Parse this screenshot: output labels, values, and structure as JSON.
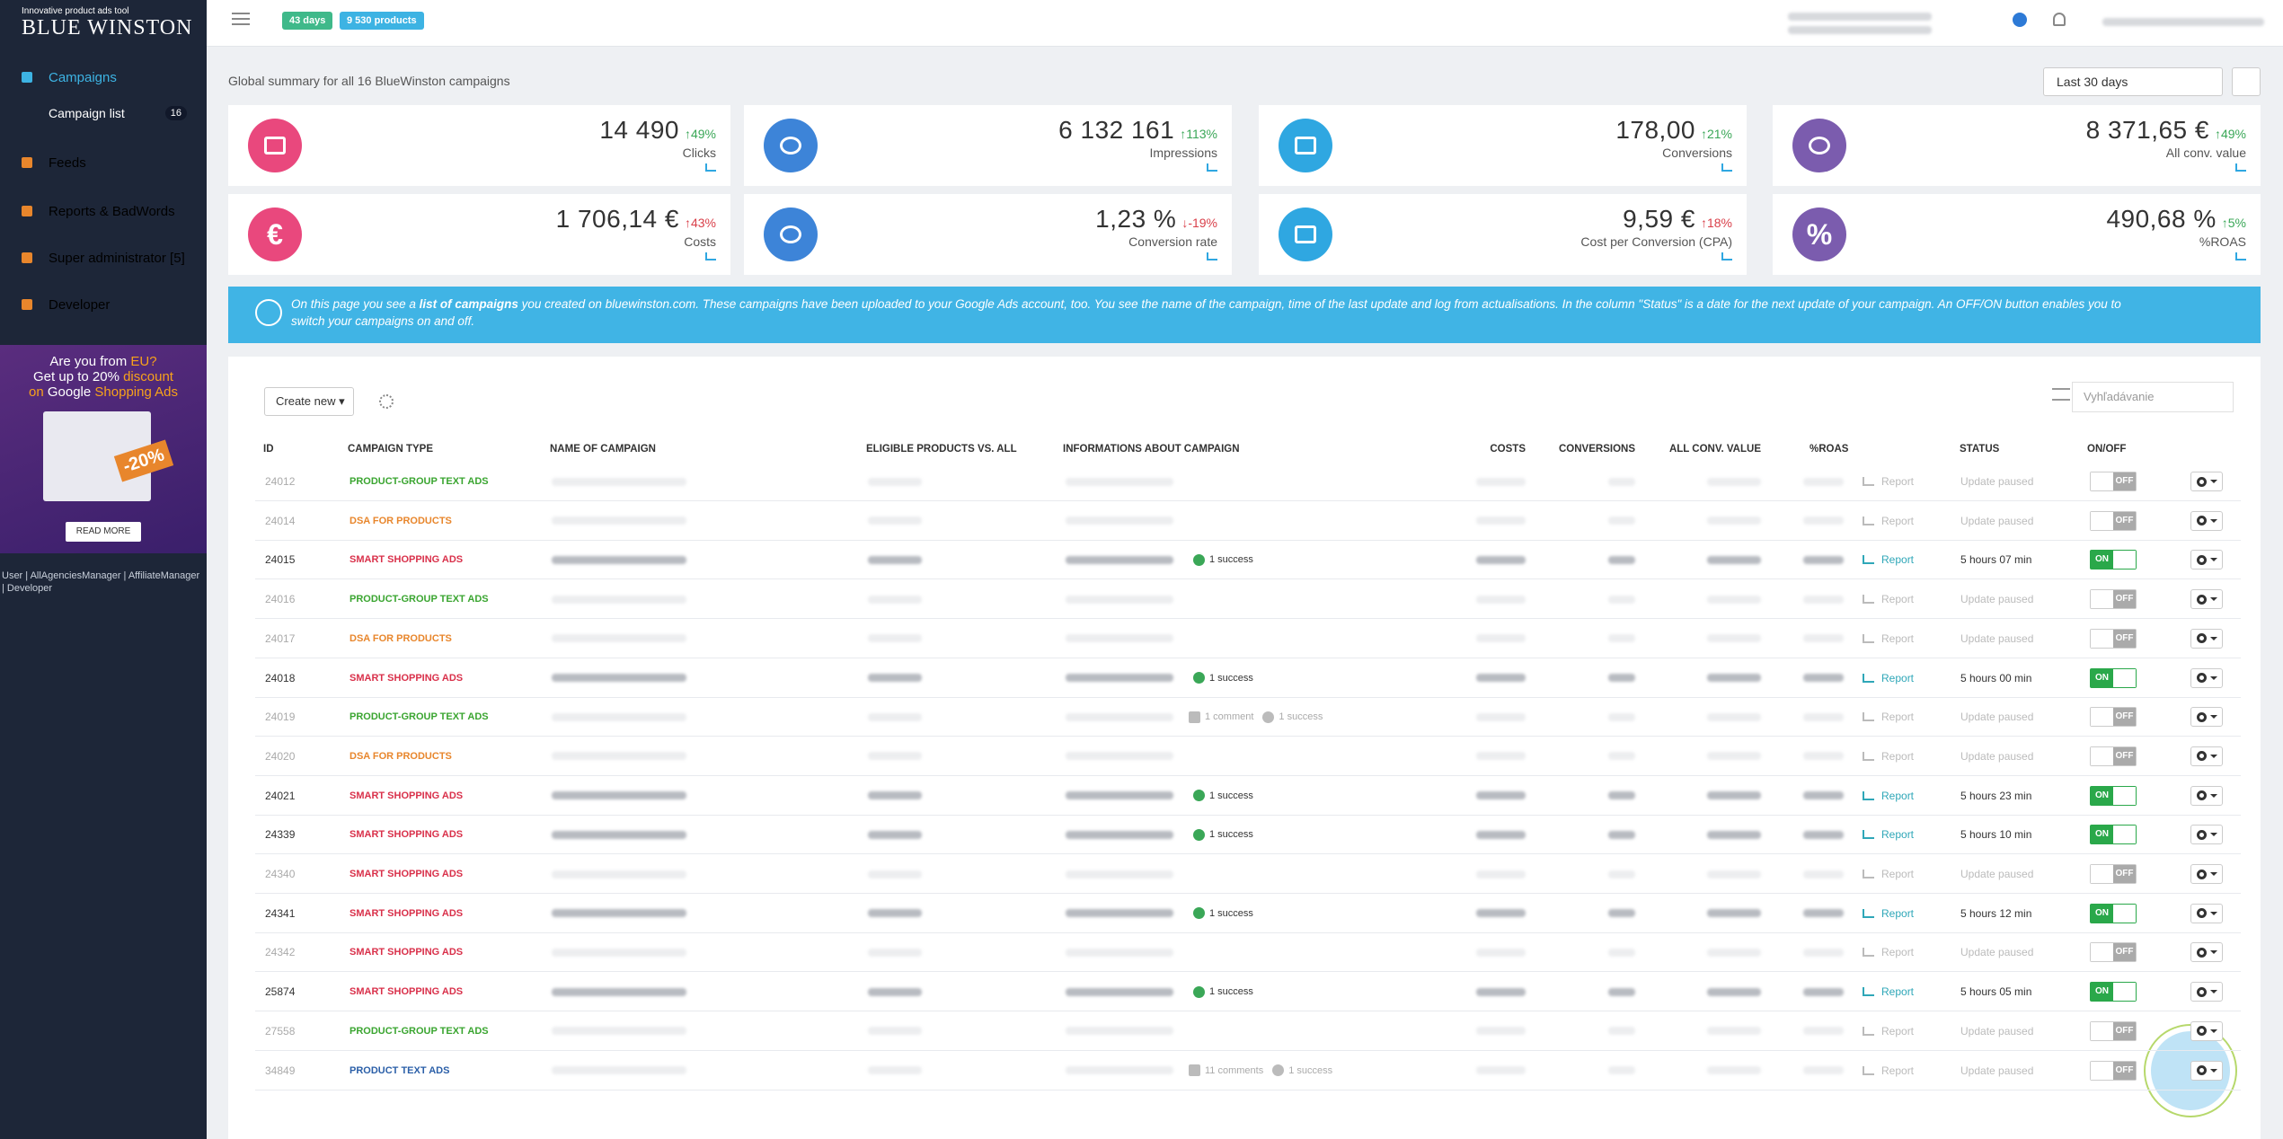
{
  "logo": {
    "tagline": "Innovative product ads tool",
    "name": "BLUE WINSTON"
  },
  "topbar": {
    "badges": [
      {
        "text": "43 days",
        "color": "#3fb98a"
      },
      {
        "text": "9 530 products",
        "color": "#3db3e3"
      }
    ]
  },
  "sidebar": {
    "items": [
      {
        "label": "Campaigns",
        "active": true
      },
      {
        "label": "Campaign list",
        "sub": true,
        "count": "16"
      },
      {
        "label": "Feeds"
      },
      {
        "label": "Reports & BadWords"
      },
      {
        "label": "Super administrator [5]"
      },
      {
        "label": "Developer"
      }
    ],
    "ad": {
      "line1a": "Are you from ",
      "line1b": "EU?",
      "line2a": "Get up to 20% ",
      "line2b": "discount",
      "line3a": "on ",
      "line3b": "Google ",
      "line3c": "Shopping Ads",
      "badge": "-20%",
      "button": "READ MORE"
    },
    "footer": "User | AllAgenciesManager | AffiliateManager | Developer"
  },
  "summary": {
    "title": "Global summary for all 16 BlueWinston campaigns",
    "period": "Last 30 days"
  },
  "cards": [
    {
      "value": "14 490",
      "change": "↑49%",
      "change_color": "#3aa757",
      "label": "Clicks",
      "color": "#e9487d"
    },
    {
      "value": "6 132 161",
      "change": "↑113%",
      "change_color": "#3aa757",
      "label": "Impressions",
      "color": "#3d84d8"
    },
    {
      "value": "178,00",
      "change": "↑21%",
      "change_color": "#3aa757",
      "label": "Conversions",
      "color": "#2fa7e1"
    },
    {
      "value": "8 371,65 €",
      "change": "↑49%",
      "change_color": "#3aa757",
      "label": "All conv. value",
      "color": "#7b5cae"
    },
    {
      "value": "1 706,14 €",
      "change": "↑43%",
      "change_color": "#d9404a",
      "label": "Costs",
      "color": "#e9487d",
      "icon": "€"
    },
    {
      "value": "1,23 %",
      "change": "↓-19%",
      "change_color": "#d9404a",
      "label": "Conversion rate",
      "color": "#3d84d8"
    },
    {
      "value": "9,59 €",
      "change": "↑18%",
      "change_color": "#d9404a",
      "label": "Cost per Conversion (CPA)",
      "color": "#2fa7e1"
    },
    {
      "value": "490,68 %",
      "change": "↑5%",
      "change_color": "#3aa757",
      "label": "%ROAS",
      "color": "#7b5cae",
      "icon": "%"
    }
  ],
  "info_banner": {
    "before": "On this page you see a ",
    "bold": "list of campaigns",
    "after": " you created on bluewinston.com. These campaigns have been uploaded to your Google Ads account, too. You see the name of the campaign, time of the last update and log from actualisations. In the column \"Status\" is a date for the next update of your campaign. An OFF/ON button enables you to switch your campaigns on and off."
  },
  "table": {
    "create_button": "Create new",
    "search_placeholder": "Vyhľadávanie",
    "columns": [
      "ID",
      "CAMPAIGN TYPE",
      "NAME OF CAMPAIGN",
      "ELIGIBLE PRODUCTS VS. ALL",
      "INFORMATIONS ABOUT CAMPAIGN",
      "COSTS",
      "CONVERSIONS",
      "ALL CONV. VALUE",
      "%ROAS",
      "STATUS",
      "ON/OFF"
    ],
    "rows": [
      {
        "id": "24012",
        "type": "PRODUCT-GROUP TEXT ADS",
        "color": "#3aa530",
        "on": false,
        "info": [],
        "report": "Report",
        "status": "Update paused",
        "toggle": "OFF"
      },
      {
        "id": "24014",
        "type": "DSA FOR PRODUCTS",
        "color": "#e8862c",
        "on": false,
        "info": [],
        "report": "Report",
        "status": "Update paused",
        "toggle": "OFF"
      },
      {
        "id": "24015",
        "type": "SMART SHOPPING ADS",
        "color": "#d9304a",
        "on": true,
        "info": [
          "1 success"
        ],
        "report": "Report",
        "status": "5 hours 07 min",
        "toggle": "ON"
      },
      {
        "id": "24016",
        "type": "PRODUCT-GROUP TEXT ADS",
        "color": "#3aa530",
        "on": false,
        "info": [],
        "report": "Report",
        "status": "Update paused",
        "toggle": "OFF"
      },
      {
        "id": "24017",
        "type": "DSA FOR PRODUCTS",
        "color": "#e8862c",
        "on": false,
        "info": [],
        "report": "Report",
        "status": "Update paused",
        "toggle": "OFF"
      },
      {
        "id": "24018",
        "type": "SMART SHOPPING ADS",
        "color": "#d9304a",
        "on": true,
        "info": [
          "1 success"
        ],
        "report": "Report",
        "status": "5 hours 00 min",
        "toggle": "ON"
      },
      {
        "id": "24019",
        "type": "PRODUCT-GROUP TEXT ADS",
        "color": "#3aa530",
        "on": false,
        "info": [
          "1 comment",
          "1 success"
        ],
        "report": "Report",
        "status": "Update paused",
        "toggle": "OFF"
      },
      {
        "id": "24020",
        "type": "DSA FOR PRODUCTS",
        "color": "#e8862c",
        "on": false,
        "info": [],
        "report": "Report",
        "status": "Update paused",
        "toggle": "OFF"
      },
      {
        "id": "24021",
        "type": "SMART SHOPPING ADS",
        "color": "#d9304a",
        "on": true,
        "info": [
          "1 success"
        ],
        "report": "Report",
        "status": "5 hours 23 min",
        "toggle": "ON"
      },
      {
        "id": "24339",
        "type": "SMART SHOPPING ADS",
        "color": "#d9304a",
        "on": true,
        "info": [
          "1 success"
        ],
        "report": "Report",
        "status": "5 hours 10 min",
        "toggle": "ON"
      },
      {
        "id": "24340",
        "type": "SMART SHOPPING ADS",
        "color": "#d9304a",
        "on": false,
        "info": [],
        "report": "Report",
        "status": "Update paused",
        "toggle": "OFF"
      },
      {
        "id": "24341",
        "type": "SMART SHOPPING ADS",
        "color": "#d9304a",
        "on": true,
        "info": [
          "1 success"
        ],
        "report": "Report",
        "status": "5 hours 12 min",
        "toggle": "ON"
      },
      {
        "id": "24342",
        "type": "SMART SHOPPING ADS",
        "color": "#d9304a",
        "on": false,
        "info": [],
        "report": "Report",
        "status": "Update paused",
        "toggle": "OFF"
      },
      {
        "id": "25874",
        "type": "SMART SHOPPING ADS",
        "color": "#d9304a",
        "on": true,
        "info": [
          "1 success"
        ],
        "report": "Report",
        "status": "5 hours 05 min",
        "toggle": "ON"
      },
      {
        "id": "27558",
        "type": "PRODUCT-GROUP TEXT ADS",
        "color": "#3aa530",
        "on": false,
        "info": [],
        "report": "Report",
        "status": "Update paused",
        "toggle": "OFF"
      },
      {
        "id": "34849",
        "type": "PRODUCT TEXT ADS",
        "color": "#2b5fa8",
        "on": false,
        "info": [
          "11 comments",
          "1 success"
        ],
        "report": "Report",
        "status": "Update paused",
        "toggle": "OFF"
      }
    ]
  }
}
